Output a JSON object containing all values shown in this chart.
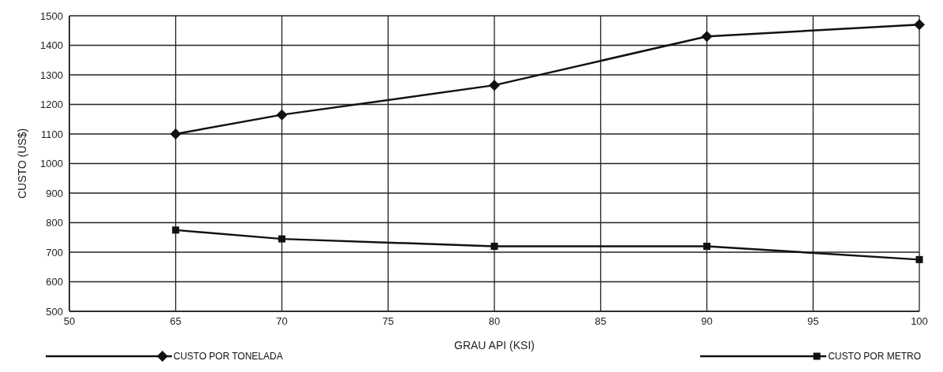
{
  "chart_data": {
    "type": "line",
    "xlabel": "GRAU API  (KSI)",
    "ylabel": "CUSTO (US$)",
    "categories": [
      "50",
      "65",
      "70",
      "75",
      "80",
      "85",
      "90",
      "95",
      "100"
    ],
    "series": [
      {
        "name": "CUSTO POR TONELADA",
        "color": "#111111",
        "marker": "diamond",
        "values": [
          null,
          1100,
          1165,
          null,
          1265,
          null,
          1430,
          null,
          1470
        ]
      },
      {
        "name": "CUSTO POR METRO",
        "color": "#111111",
        "marker": "square",
        "values": [
          null,
          775,
          745,
          null,
          720,
          null,
          720,
          null,
          675
        ]
      }
    ],
    "ylim": [
      500,
      1500
    ],
    "yticks": [
      500,
      600,
      700,
      800,
      900,
      1000,
      1100,
      1200,
      1300,
      1400,
      1500
    ],
    "grid": true,
    "legend": "bottom",
    "line_style": "solid"
  }
}
